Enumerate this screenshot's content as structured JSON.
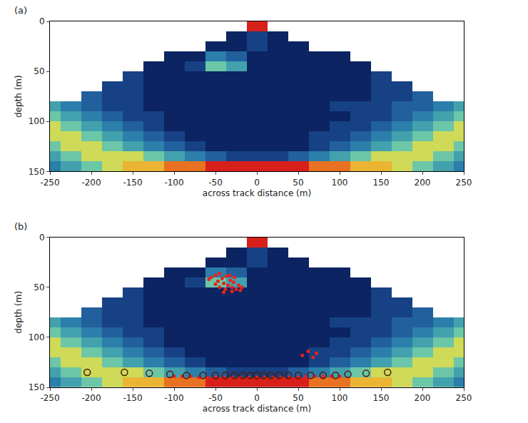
{
  "chart_data": [
    {
      "type": "heatmap",
      "label": "(a)",
      "xlabel": "across track distance (m)",
      "ylabel": "depth (m)",
      "xlim": [
        -250,
        250
      ],
      "xticks": [
        -250,
        -200,
        -150,
        -100,
        -50,
        0,
        50,
        100,
        150,
        200,
        250
      ],
      "ylim": [
        150,
        0
      ],
      "yticks": [
        0,
        50,
        100,
        150
      ],
      "grid": false,
      "zlim": [
        0,
        10
      ],
      "x": [
        -250,
        -225,
        -200,
        -175,
        -150,
        -125,
        -100,
        -75,
        -50,
        -25,
        0,
        25,
        50,
        75,
        100,
        125,
        150,
        175,
        200,
        225,
        250
      ],
      "y": [
        5,
        15,
        25,
        35,
        45,
        55,
        65,
        75,
        85,
        95,
        105,
        115,
        125,
        135,
        145
      ],
      "cells": [
        [
          null,
          null,
          null,
          null,
          null,
          null,
          null,
          null,
          null,
          null,
          10,
          null,
          null,
          null,
          null,
          null,
          null,
          null,
          null,
          null,
          null
        ],
        [
          null,
          null,
          null,
          null,
          null,
          null,
          null,
          null,
          null,
          1,
          2,
          1,
          null,
          null,
          null,
          null,
          null,
          null,
          null,
          null,
          null
        ],
        [
          null,
          null,
          null,
          null,
          null,
          null,
          null,
          null,
          1,
          1,
          2,
          1,
          1,
          null,
          null,
          null,
          null,
          null,
          null,
          null,
          null
        ],
        [
          null,
          null,
          null,
          null,
          null,
          null,
          1,
          1,
          4,
          3,
          1,
          1,
          1,
          1,
          1,
          null,
          null,
          null,
          null,
          null,
          null
        ],
        [
          null,
          null,
          null,
          null,
          null,
          1,
          1,
          2,
          6,
          5,
          1,
          1,
          1,
          1,
          1,
          1,
          null,
          null,
          null,
          null,
          null
        ],
        [
          null,
          null,
          null,
          null,
          2,
          1,
          1,
          1,
          1,
          1,
          1,
          1,
          1,
          1,
          1,
          1,
          2,
          null,
          null,
          null,
          null
        ],
        [
          null,
          null,
          null,
          2,
          2,
          1,
          1,
          1,
          1,
          1,
          1,
          1,
          1,
          1,
          1,
          1,
          2,
          2,
          null,
          null,
          null
        ],
        [
          null,
          null,
          3,
          2,
          2,
          1,
          1,
          1,
          1,
          1,
          1,
          1,
          1,
          1,
          1,
          1,
          2,
          2,
          3,
          null,
          null
        ],
        [
          5,
          4,
          3,
          2,
          2,
          1,
          1,
          1,
          1,
          1,
          1,
          1,
          1,
          1,
          2,
          2,
          2,
          3,
          3,
          4,
          5
        ],
        [
          6,
          5,
          4,
          3,
          2,
          2,
          1,
          1,
          1,
          1,
          1,
          1,
          1,
          1,
          1,
          2,
          2,
          3,
          4,
          5,
          6
        ],
        [
          7,
          6,
          5,
          4,
          3,
          2,
          1,
          1,
          1,
          1,
          1,
          1,
          1,
          1,
          2,
          2,
          3,
          4,
          5,
          6,
          7
        ],
        [
          7,
          7,
          6,
          5,
          4,
          3,
          2,
          1,
          1,
          1,
          1,
          1,
          1,
          2,
          2,
          3,
          4,
          5,
          6,
          7,
          7
        ],
        [
          6,
          7,
          7,
          6,
          5,
          4,
          3,
          2,
          1,
          1,
          1,
          1,
          1,
          2,
          3,
          4,
          5,
          6,
          7,
          7,
          6
        ],
        [
          5,
          6,
          7,
          7,
          7,
          6,
          5,
          4,
          3,
          2,
          2,
          2,
          3,
          4,
          5,
          6,
          7,
          7,
          7,
          6,
          5
        ],
        [
          4,
          5,
          6,
          7,
          8,
          8,
          9,
          9,
          10,
          10,
          10,
          10,
          10,
          9,
          9,
          8,
          8,
          7,
          6,
          5,
          4
        ]
      ]
    },
    {
      "type": "heatmap",
      "label": "(b)",
      "xlabel": "across track distance (m)",
      "ylabel": "depth (m)",
      "xlim": [
        -250,
        250
      ],
      "xticks": [
        -250,
        -200,
        -150,
        -100,
        -50,
        0,
        50,
        100,
        150,
        200,
        250
      ],
      "ylim": [
        150,
        0
      ],
      "yticks": [
        0,
        50,
        100,
        150
      ],
      "grid": false,
      "zlim": [
        0,
        10
      ],
      "x": [
        -250,
        -225,
        -200,
        -175,
        -150,
        -125,
        -100,
        -75,
        -50,
        -25,
        0,
        25,
        50,
        75,
        100,
        125,
        150,
        175,
        200,
        225,
        250
      ],
      "y": [
        5,
        15,
        25,
        35,
        45,
        55,
        65,
        75,
        85,
        95,
        105,
        115,
        125,
        135,
        145
      ],
      "cells": [
        [
          null,
          null,
          null,
          null,
          null,
          null,
          null,
          null,
          null,
          null,
          10,
          null,
          null,
          null,
          null,
          null,
          null,
          null,
          null,
          null,
          null
        ],
        [
          null,
          null,
          null,
          null,
          null,
          null,
          null,
          null,
          null,
          1,
          2,
          1,
          null,
          null,
          null,
          null,
          null,
          null,
          null,
          null,
          null
        ],
        [
          null,
          null,
          null,
          null,
          null,
          null,
          null,
          null,
          1,
          1,
          2,
          1,
          1,
          null,
          null,
          null,
          null,
          null,
          null,
          null,
          null
        ],
        [
          null,
          null,
          null,
          null,
          null,
          null,
          1,
          1,
          4,
          3,
          1,
          1,
          1,
          1,
          1,
          null,
          null,
          null,
          null,
          null,
          null
        ],
        [
          null,
          null,
          null,
          null,
          null,
          1,
          1,
          2,
          6,
          5,
          1,
          1,
          1,
          1,
          1,
          1,
          null,
          null,
          null,
          null,
          null
        ],
        [
          null,
          null,
          null,
          null,
          2,
          1,
          1,
          1,
          1,
          1,
          1,
          1,
          1,
          1,
          1,
          1,
          2,
          null,
          null,
          null,
          null
        ],
        [
          null,
          null,
          null,
          2,
          2,
          1,
          1,
          1,
          1,
          1,
          1,
          1,
          1,
          1,
          1,
          1,
          2,
          2,
          null,
          null,
          null
        ],
        [
          null,
          null,
          3,
          2,
          2,
          1,
          1,
          1,
          1,
          1,
          1,
          1,
          1,
          1,
          1,
          1,
          2,
          2,
          3,
          null,
          null
        ],
        [
          5,
          4,
          3,
          2,
          2,
          1,
          1,
          1,
          1,
          1,
          1,
          1,
          1,
          1,
          2,
          2,
          2,
          3,
          3,
          4,
          5
        ],
        [
          6,
          5,
          4,
          3,
          2,
          2,
          1,
          1,
          1,
          1,
          1,
          1,
          1,
          1,
          1,
          2,
          2,
          3,
          4,
          5,
          6
        ],
        [
          7,
          6,
          5,
          4,
          3,
          2,
          1,
          1,
          1,
          1,
          1,
          1,
          1,
          1,
          2,
          2,
          3,
          4,
          5,
          6,
          7
        ],
        [
          7,
          7,
          6,
          5,
          4,
          3,
          2,
          1,
          1,
          1,
          1,
          1,
          1,
          2,
          2,
          3,
          4,
          5,
          6,
          7,
          7
        ],
        [
          6,
          7,
          7,
          6,
          5,
          4,
          3,
          2,
          1,
          1,
          1,
          1,
          1,
          2,
          3,
          4,
          5,
          6,
          7,
          7,
          6
        ],
        [
          5,
          6,
          7,
          7,
          7,
          6,
          5,
          4,
          3,
          2,
          2,
          2,
          3,
          4,
          5,
          6,
          7,
          7,
          7,
          6,
          5
        ],
        [
          4,
          5,
          6,
          7,
          8,
          8,
          9,
          9,
          10,
          10,
          10,
          10,
          10,
          9,
          9,
          8,
          8,
          7,
          6,
          5,
          4
        ]
      ],
      "series": [
        {
          "type": "scatter",
          "marker": "dot",
          "color": "#e8231b",
          "x": [
            -58,
            -55,
            -50,
            -47,
            -45,
            -42,
            -40,
            -37,
            -35,
            -32,
            -30,
            -28,
            -25,
            -22,
            -20,
            -50,
            -45,
            -38,
            -33,
            -27,
            -18,
            -40,
            -30,
            55,
            62,
            68,
            72,
            -100,
            -90,
            -80,
            -70,
            -60,
            -50,
            -40,
            -30,
            -20,
            -10,
            0,
            10,
            20,
            30,
            40,
            50,
            60,
            70,
            80,
            90,
            100
          ],
          "y": [
            42,
            40,
            38,
            44,
            36,
            41,
            46,
            39,
            48,
            43,
            50,
            45,
            52,
            48,
            53,
            47,
            50,
            52,
            38,
            40,
            50,
            55,
            54,
            118,
            114,
            120,
            116,
            139,
            139,
            139,
            140,
            140,
            140,
            140,
            140,
            140,
            140,
            140,
            140,
            140,
            140,
            140,
            140,
            139,
            139,
            139,
            139,
            139
          ]
        },
        {
          "type": "scatter",
          "marker": "circle-open",
          "color": "#4a1a0e",
          "x": [
            -205,
            -160,
            -130,
            -105,
            -85,
            -65,
            -50,
            -38,
            -27,
            -17,
            -8,
            0,
            8,
            17,
            27,
            38,
            50,
            65,
            80,
            95,
            110,
            132,
            158
          ],
          "y": [
            135,
            135,
            136,
            137,
            138,
            138,
            138,
            138,
            138,
            138,
            138,
            138,
            138,
            138,
            138,
            138,
            138,
            138,
            138,
            138,
            137,
            136,
            135
          ]
        }
      ]
    }
  ]
}
